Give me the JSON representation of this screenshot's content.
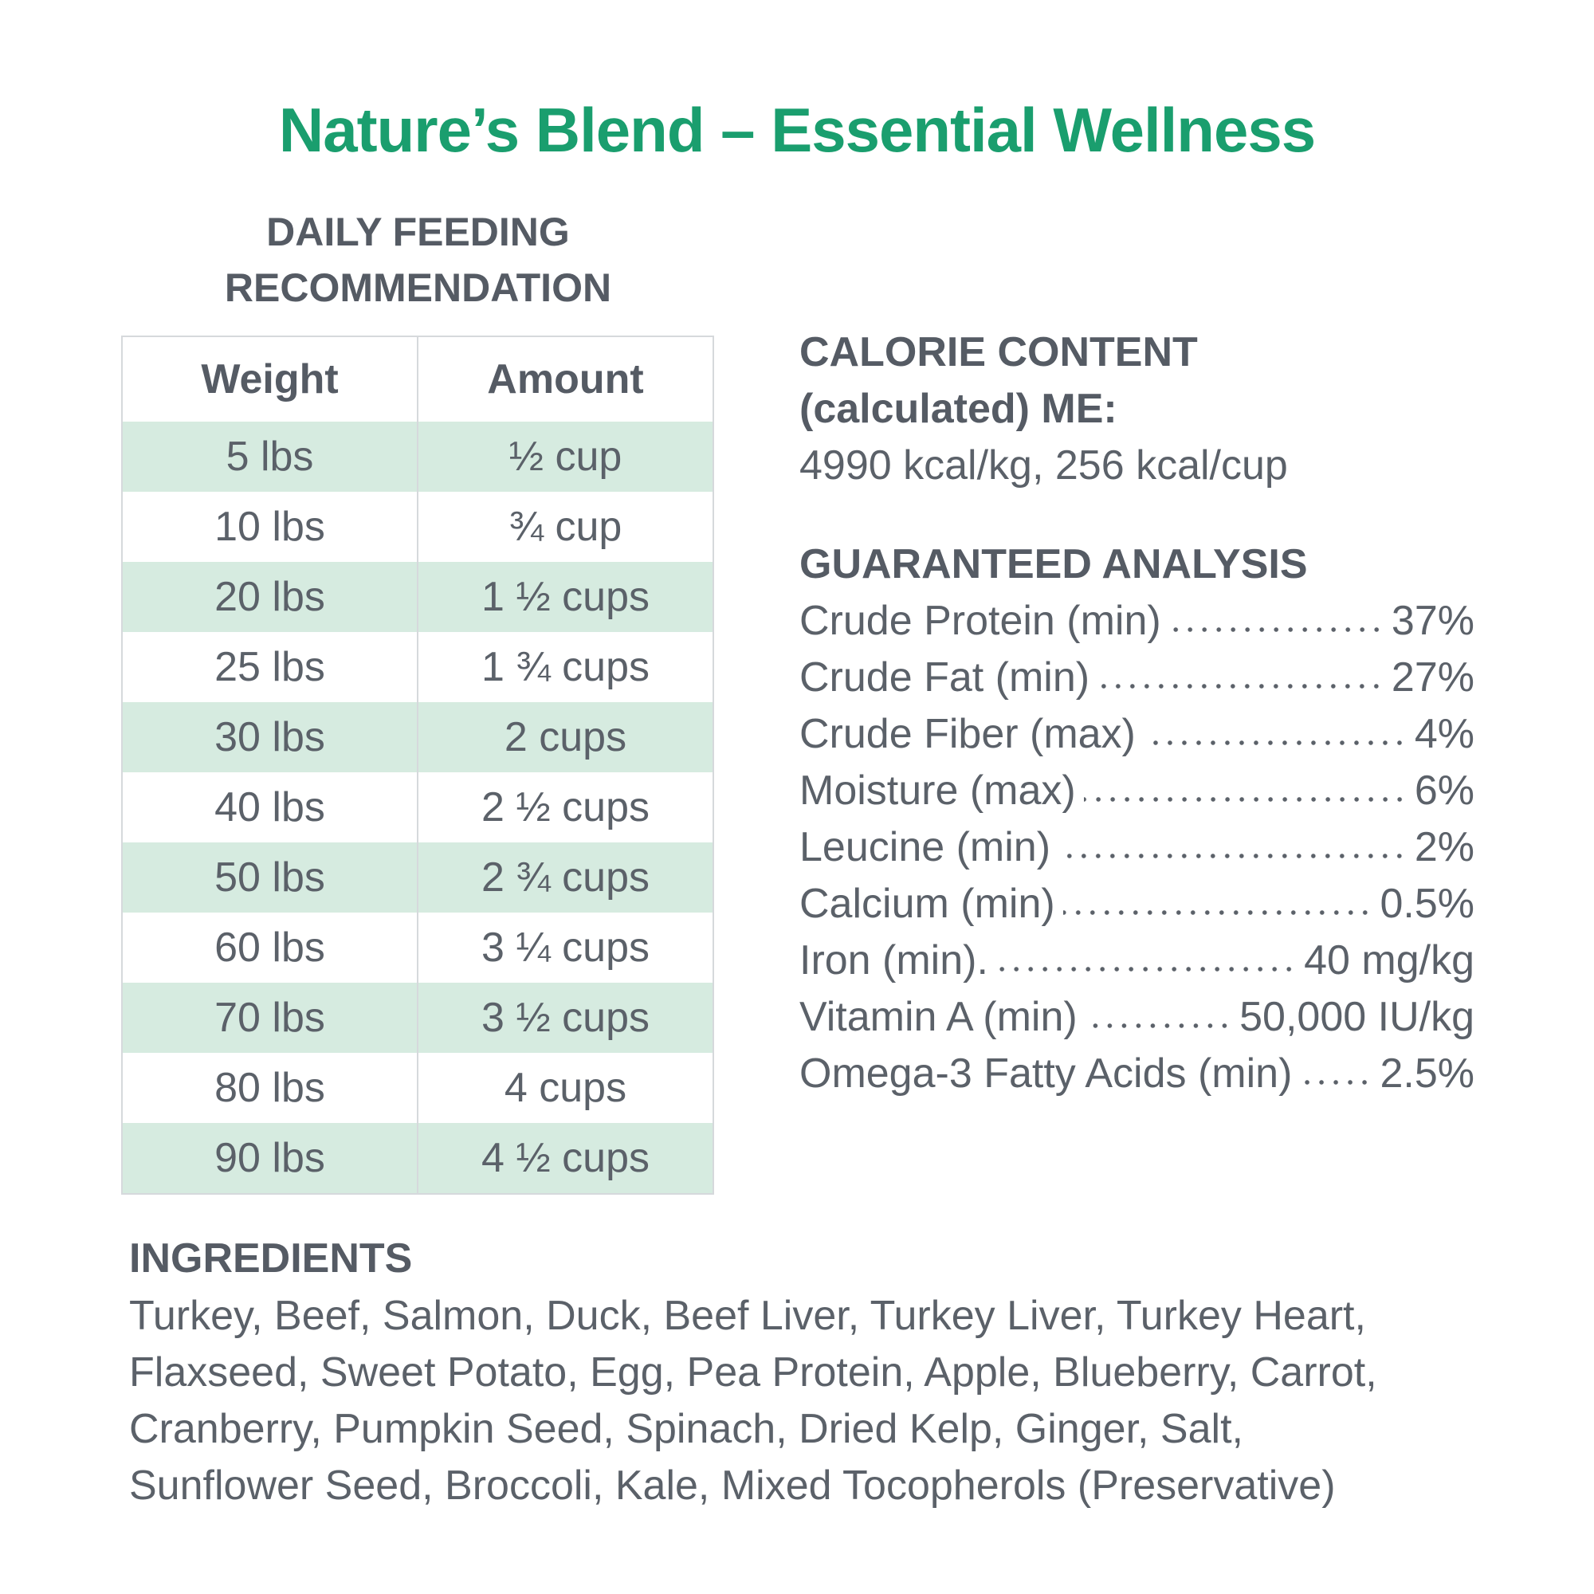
{
  "title": "Nature’s Blend – Essential Wellness",
  "feeding": {
    "heading": [
      "DAILY FEEDING",
      "RECOMMENDATION"
    ],
    "table": {
      "header": [
        "Weight",
        "Amount"
      ],
      "rows": [
        [
          "5 lbs",
          "½ cup"
        ],
        [
          "10 lbs",
          "¾ cup"
        ],
        [
          "20 lbs",
          "1 ½ cups"
        ],
        [
          "25 lbs",
          "1 ¾ cups"
        ],
        [
          "30 lbs",
          "2 cups"
        ],
        [
          "40 lbs",
          "2 ½ cups"
        ],
        [
          "50 lbs",
          "2 ¾ cups"
        ],
        [
          "60 lbs",
          "3 ¼ cups"
        ],
        [
          "70 lbs",
          "3 ½ cups"
        ],
        [
          "80 lbs",
          "4 cups"
        ],
        [
          "90 lbs",
          "4 ½ cups"
        ]
      ]
    }
  },
  "calorie": {
    "heading": [
      "CALORIE CONTENT",
      "(calculated) ME:"
    ],
    "value": "4990 kcal/kg, 256 kcal/cup"
  },
  "analysis": {
    "heading": "GUARANTEED ANALYSIS",
    "rows": [
      {
        "label": "Crude Protein (min)",
        "value": "37%"
      },
      {
        "label": "Crude Fat (min)",
        "value": "27%"
      },
      {
        "label": "Crude Fiber (max)",
        "value": "4%"
      },
      {
        "label": "Moisture (max)",
        "value": "6%"
      },
      {
        "label": "Leucine (min)",
        "value": "2%"
      },
      {
        "label": "Calcium (min)",
        "value": "0.5%"
      },
      {
        "label": "Iron (min).",
        "value": "40 mg/kg"
      },
      {
        "label": "Vitamin A (min)",
        "value": "50,000 IU/kg"
      },
      {
        "label": "Omega-3 Fatty Acids (min)",
        "value": "2.5%"
      }
    ]
  },
  "ingredients": {
    "heading": "INGREDIENTS",
    "lines": [
      "Turkey, Beef, Salmon, Duck, Beef Liver, Turkey Liver, Turkey Heart,",
      "Flaxseed, Sweet Potato, Egg, Pea Protein, Apple, Blueberry, Carrot,",
      "Cranberry, Pumpkin Seed, Spinach, Dried Kelp, Ginger, Salt,",
      "Sunflower Seed, Broccoli, Kale, Mixed Tocopherols (Preservative)"
    ]
  }
}
